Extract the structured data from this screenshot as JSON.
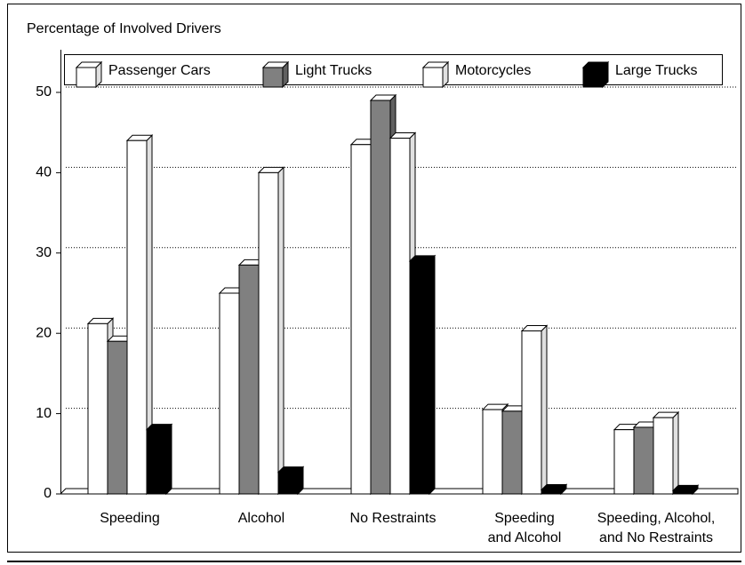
{
  "chart_data": {
    "type": "bar3d",
    "y_axis_label": "Percentage of Involved Drivers",
    "categories": [
      [
        "Speeding"
      ],
      [
        "Alcohol"
      ],
      [
        "No Restraints"
      ],
      [
        "Speeding",
        "and Alcohol"
      ],
      [
        "Speeding, Alcohol,",
        "and No Restraints"
      ]
    ],
    "series": [
      {
        "name": "Passenger Cars",
        "color": "#ffffff",
        "values": [
          21.2,
          25,
          43.5,
          10.5,
          8
        ]
      },
      {
        "name": "Light Trucks",
        "color": "#808080",
        "values": [
          19,
          28.5,
          49,
          10.3,
          8.3
        ]
      },
      {
        "name": "Motorcycles",
        "color": "#ffffff",
        "values": [
          44,
          40,
          44.3,
          20.3,
          9.5
        ]
      },
      {
        "name": "Large Trucks",
        "color": "#000000",
        "values": [
          8,
          2.7,
          29,
          0.5,
          0.4
        ]
      }
    ],
    "ylim": [
      0,
      50
    ],
    "yticks": [
      0,
      10,
      20,
      30,
      40,
      50
    ],
    "grid": true,
    "legend": "top"
  }
}
